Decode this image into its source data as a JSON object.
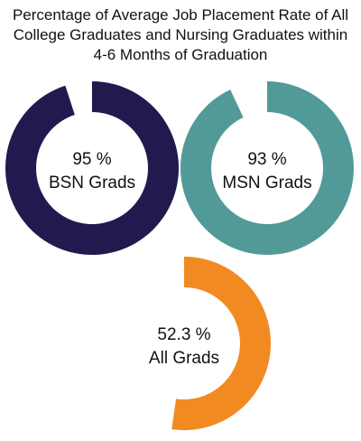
{
  "chart_data": {
    "type": "pie",
    "title_lines": [
      "Percentage of Average Job Placement Rate of All",
      "College Graduates and Nursing Graduates within",
      "4-6 Months of Graduation"
    ],
    "series": [
      {
        "name": "BSN Grads",
        "value_label": "95 %",
        "value": 95,
        "color": "#201a4e"
      },
      {
        "name": "MSN Grads",
        "value_label": "93 %",
        "value": 93,
        "color": "#529a98"
      },
      {
        "name": "All Grads",
        "value_label": "52.3 %",
        "value": 52.3,
        "color": "#f28a22"
      }
    ],
    "unit": "%"
  }
}
